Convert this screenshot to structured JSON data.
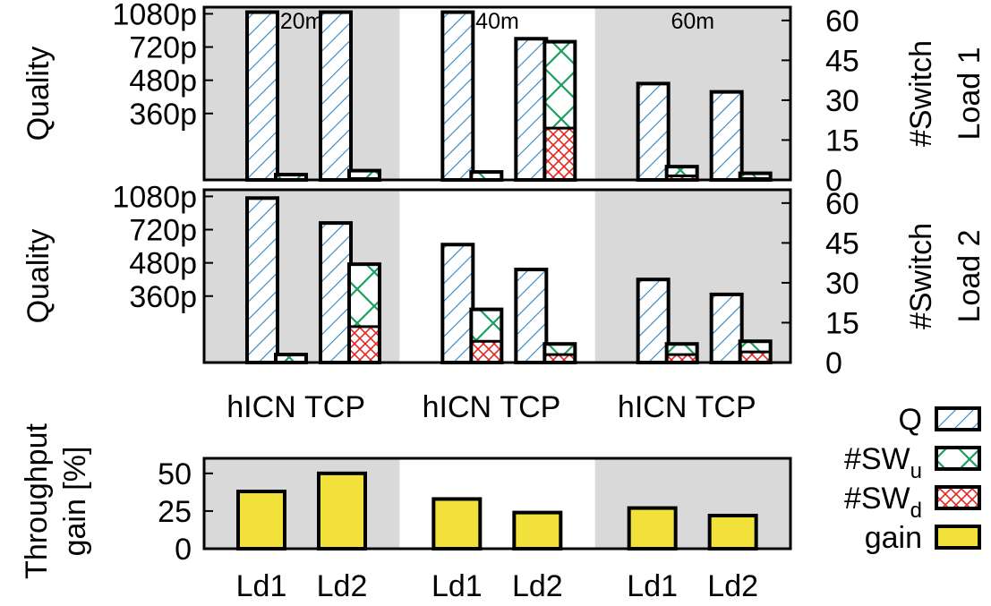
{
  "colors": {
    "shade": "#d9d9d9",
    "q": "#2b85c2",
    "sw_up": "#1a9e5c",
    "sw_down": "#e3261f",
    "gain": "#f2e13a"
  },
  "chart_data": [
    {
      "type": "bar",
      "id": "load1",
      "panel_label": "Load 1",
      "left_ylabel": "Quality",
      "right_ylabel": "#Switch",
      "left_ticks": [
        "1080p",
        "720p",
        "480p",
        "360p"
      ],
      "left_tick_values": [
        5,
        4,
        3,
        2
      ],
      "left_ylim": [
        0,
        5.2
      ],
      "right_ticks": [
        "60",
        "45",
        "30",
        "15",
        "0"
      ],
      "right_tick_values": [
        60,
        45,
        30,
        15,
        0
      ],
      "right_ylim": [
        0,
        65
      ],
      "groups": [
        {
          "label": "20m",
          "shaded": true,
          "bars": [
            {
              "protocol": "hICN",
              "quality": 5.05,
              "sw_down": 0,
              "sw_up": 2
            },
            {
              "protocol": "TCP",
              "quality": 5.05,
              "sw_down": 0.5,
              "sw_up": 3
            }
          ]
        },
        {
          "label": "40m",
          "shaded": false,
          "bars": [
            {
              "protocol": "hICN",
              "quality": 5.05,
              "sw_down": 0,
              "sw_up": 3
            },
            {
              "protocol": "TCP",
              "quality": 4.25,
              "sw_down": 19.5,
              "sw_up": 32.5
            }
          ]
        },
        {
          "label": "60m",
          "shaded": true,
          "bars": [
            {
              "protocol": "hICN",
              "quality": 2.9,
              "sw_down": 1.5,
              "sw_up": 3.5
            },
            {
              "protocol": "TCP",
              "quality": 2.65,
              "sw_down": 0.5,
              "sw_up": 2
            }
          ]
        }
      ]
    },
    {
      "type": "bar",
      "id": "load2",
      "panel_label": "Load 2",
      "left_ylabel": "Quality",
      "right_ylabel": "#Switch",
      "left_ticks": [
        "1080p",
        "720p",
        "480p",
        "360p"
      ],
      "left_tick_values": [
        5,
        4,
        3,
        2
      ],
      "left_ylim": [
        0,
        5.2
      ],
      "right_ticks": [
        "60",
        "45",
        "30",
        "15",
        "0"
      ],
      "right_tick_values": [
        60,
        45,
        30,
        15,
        0
      ],
      "right_ylim": [
        0,
        65
      ],
      "groups": [
        {
          "label": "20m",
          "shaded": true,
          "bars": [
            {
              "protocol": "hICN",
              "quality": 4.95,
              "sw_down": 0,
              "sw_up": 3
            },
            {
              "protocol": "TCP",
              "quality": 4.2,
              "sw_down": 13.5,
              "sw_up": 23.5
            }
          ]
        },
        {
          "label": "40m",
          "shaded": false,
          "bars": [
            {
              "protocol": "hICN",
              "quality": 3.55,
              "sw_down": 8,
              "sw_up": 12
            },
            {
              "protocol": "TCP",
              "quality": 2.8,
              "sw_down": 3,
              "sw_up": 4
            }
          ]
        },
        {
          "label": "60m",
          "shaded": true,
          "bars": [
            {
              "protocol": "hICN",
              "quality": 2.5,
              "sw_down": 3,
              "sw_up": 4
            },
            {
              "protocol": "TCP",
              "quality": 2.05,
              "sw_down": 4,
              "sw_up": 4
            }
          ]
        }
      ]
    },
    {
      "type": "bar",
      "id": "gain",
      "ylabel_lines": [
        "Throughput",
        "gain [%]"
      ],
      "ylim": [
        0,
        60
      ],
      "yticks": [
        "50",
        "25",
        "0"
      ],
      "ytick_values": [
        50,
        25,
        0
      ],
      "groups": [
        {
          "shaded": true,
          "bars": [
            {
              "label": "Ld1",
              "value": 38
            },
            {
              "label": "Ld2",
              "value": 50
            }
          ]
        },
        {
          "shaded": false,
          "bars": [
            {
              "label": "Ld1",
              "value": 33
            },
            {
              "label": "Ld2",
              "value": 24
            }
          ]
        },
        {
          "shaded": true,
          "bars": [
            {
              "label": "Ld1",
              "value": 27
            },
            {
              "label": "Ld2",
              "value": 22
            }
          ]
        }
      ]
    }
  ],
  "legend": [
    {
      "key": "q",
      "text": "Q",
      "sub": ""
    },
    {
      "key": "sw_up",
      "text": "#SW",
      "sub": "u"
    },
    {
      "key": "sw_down",
      "text": "#SW",
      "sub": "d"
    },
    {
      "key": "gain",
      "text": "gain",
      "sub": ""
    }
  ]
}
